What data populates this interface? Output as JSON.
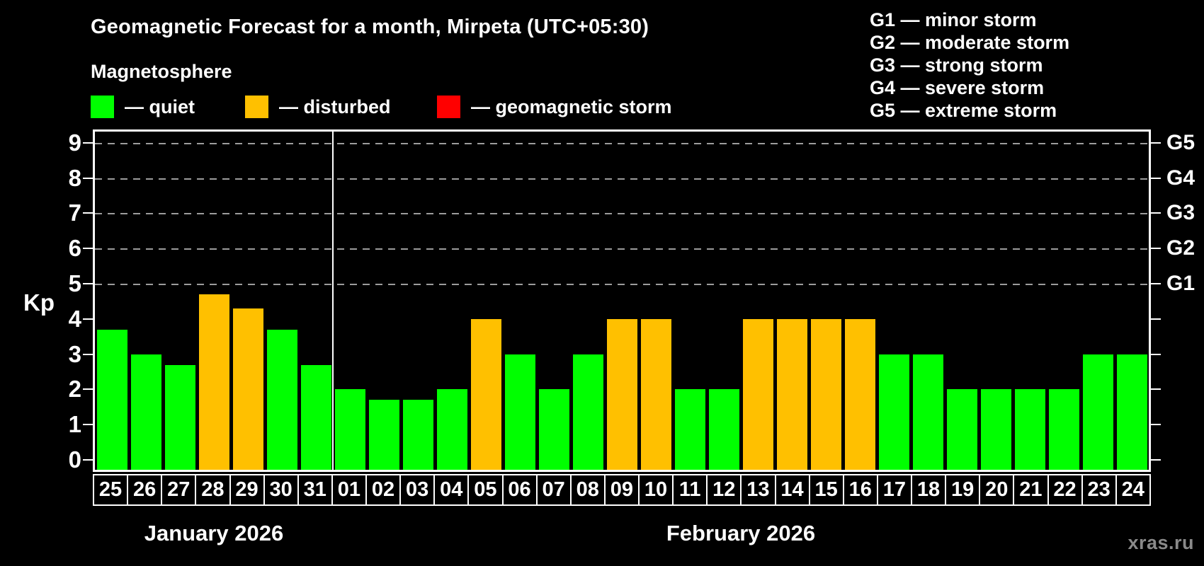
{
  "header": {
    "title": "Geomagnetic Forecast for a month, Mirpeta (UTC+05:30)",
    "subtitle": "Magnetosphere"
  },
  "legend": [
    {
      "key": "quiet",
      "label": "— quiet",
      "color": "#00ff00"
    },
    {
      "key": "disturbed",
      "label": "— disturbed",
      "color": "#ffc000"
    },
    {
      "key": "storm",
      "label": "— geomagnetic storm",
      "color": "#ff0000"
    }
  ],
  "storm_scale_legend": [
    {
      "code": "G1",
      "text": "G1 — minor storm"
    },
    {
      "code": "G2",
      "text": "G2 — moderate storm"
    },
    {
      "code": "G3",
      "text": "G3 — strong storm"
    },
    {
      "code": "G4",
      "text": "G4 — severe storm"
    },
    {
      "code": "G5",
      "text": "G5 — extreme storm"
    }
  ],
  "watermark": "xras.ru",
  "chart_data": {
    "type": "bar",
    "title": "Geomagnetic Forecast for a month, Mirpeta (UTC+05:30)",
    "ylabel": "Kp",
    "ylim": [
      0,
      9.4
    ],
    "yticks": [
      0,
      1,
      2,
      3,
      4,
      5,
      6,
      7,
      8,
      9
    ],
    "grid_levels": [
      5,
      6,
      7,
      8,
      9
    ],
    "grid_style": "dashed",
    "right_axis_labels": [
      {
        "value": 9,
        "label": "G5"
      },
      {
        "value": 8,
        "label": "G4"
      },
      {
        "value": 7,
        "label": "G3"
      },
      {
        "value": 6,
        "label": "G2"
      },
      {
        "value": 5,
        "label": "G1"
      }
    ],
    "palette": {
      "quiet": "#00ff00",
      "disturbed": "#ffc000",
      "storm": "#ff0000"
    },
    "months": [
      {
        "label": "January 2026",
        "days": [
          {
            "day": "25",
            "kp": 3.7,
            "status": "quiet"
          },
          {
            "day": "26",
            "kp": 3.0,
            "status": "quiet"
          },
          {
            "day": "27",
            "kp": 2.7,
            "status": "quiet"
          },
          {
            "day": "28",
            "kp": 4.7,
            "status": "disturbed"
          },
          {
            "day": "29",
            "kp": 4.3,
            "status": "disturbed"
          },
          {
            "day": "30",
            "kp": 3.7,
            "status": "quiet"
          },
          {
            "day": "31",
            "kp": 2.7,
            "status": "quiet"
          }
        ]
      },
      {
        "label": "February 2026",
        "days": [
          {
            "day": "01",
            "kp": 2.0,
            "status": "quiet"
          },
          {
            "day": "02",
            "kp": 1.7,
            "status": "quiet"
          },
          {
            "day": "03",
            "kp": 1.7,
            "status": "quiet"
          },
          {
            "day": "04",
            "kp": 2.0,
            "status": "quiet"
          },
          {
            "day": "05",
            "kp": 4.0,
            "status": "disturbed"
          },
          {
            "day": "06",
            "kp": 3.0,
            "status": "quiet"
          },
          {
            "day": "07",
            "kp": 2.0,
            "status": "quiet"
          },
          {
            "day": "08",
            "kp": 3.0,
            "status": "quiet"
          },
          {
            "day": "09",
            "kp": 4.0,
            "status": "disturbed"
          },
          {
            "day": "10",
            "kp": 4.0,
            "status": "disturbed"
          },
          {
            "day": "11",
            "kp": 2.0,
            "status": "quiet"
          },
          {
            "day": "12",
            "kp": 2.0,
            "status": "quiet"
          },
          {
            "day": "13",
            "kp": 4.0,
            "status": "disturbed"
          },
          {
            "day": "14",
            "kp": 4.0,
            "status": "disturbed"
          },
          {
            "day": "15",
            "kp": 4.0,
            "status": "disturbed"
          },
          {
            "day": "16",
            "kp": 4.0,
            "status": "disturbed"
          },
          {
            "day": "17",
            "kp": 3.0,
            "status": "quiet"
          },
          {
            "day": "18",
            "kp": 3.0,
            "status": "quiet"
          },
          {
            "day": "19",
            "kp": 2.0,
            "status": "quiet"
          },
          {
            "day": "20",
            "kp": 2.0,
            "status": "quiet"
          },
          {
            "day": "21",
            "kp": 2.0,
            "status": "quiet"
          },
          {
            "day": "22",
            "kp": 2.0,
            "status": "quiet"
          },
          {
            "day": "23",
            "kp": 3.0,
            "status": "quiet"
          },
          {
            "day": "24",
            "kp": 3.0,
            "status": "quiet"
          }
        ]
      }
    ]
  }
}
